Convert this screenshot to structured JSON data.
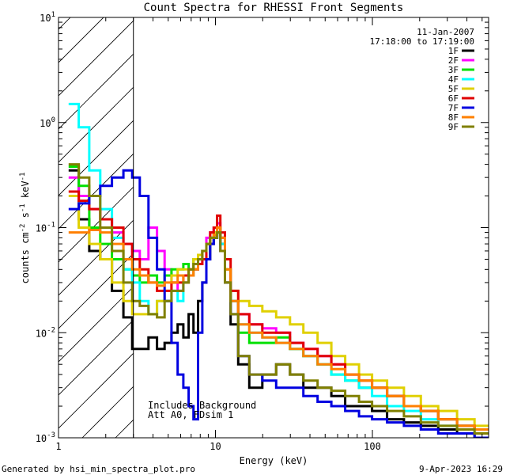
{
  "chart_data": {
    "type": "line",
    "title": "Count Spectra for RHESSI Front Segments",
    "xlabel": "Energy (keV)",
    "ylabel_parts": [
      "counts cm",
      "-2",
      " s",
      "-1",
      " keV",
      "-1"
    ],
    "x_scale": "log",
    "y_scale": "log",
    "xlim": [
      1,
      550
    ],
    "ylim": [
      0.001,
      10
    ],
    "x_ticks": [
      {
        "value": 1,
        "label": "1"
      },
      {
        "value": 10,
        "label": "10"
      },
      {
        "value": 100,
        "label": "100"
      }
    ],
    "y_ticks": [
      {
        "value": 10,
        "mantissa": "10",
        "exp": "1"
      },
      {
        "value": 1,
        "mantissa": "10",
        "exp": "0"
      },
      {
        "value": 0.1,
        "mantissa": "10",
        "exp": "-1"
      },
      {
        "value": 0.01,
        "mantissa": "10",
        "exp": "-2"
      },
      {
        "value": 0.001,
        "mantissa": "10",
        "exp": "-3"
      }
    ],
    "hatched_region": [
      1,
      3
    ],
    "date": "11-Jan-2007",
    "time_range": "17:18:00 to 17:19:00",
    "annotations": [
      "Includes Background",
      "Att A0, FDsim 1"
    ],
    "footer_left": "Generated by hsi_min_spectra_plot.pro",
    "footer_right": "9-Apr-2023 16:29",
    "series": [
      {
        "name": "1F",
        "color": "#000000",
        "x": [
          1.25,
          1.45,
          1.7,
          2.0,
          2.4,
          2.8,
          3.1,
          3.5,
          4.0,
          4.5,
          5.0,
          5.5,
          6.0,
          6.5,
          7.0,
          7.5,
          8.0,
          8.5,
          9.0,
          9.5,
          10.0,
          10.5,
          11.0,
          12.0,
          13.0,
          15.0,
          18.0,
          22.0,
          27.0,
          33.0,
          40.0,
          50.0,
          60.0,
          75.0,
          90.0,
          110.0,
          140.0,
          180.0,
          230.0,
          300.0,
          400.0,
          500.0
        ],
        "y": [
          0.35,
          0.12,
          0.06,
          0.05,
          0.025,
          0.014,
          0.007,
          0.007,
          0.009,
          0.007,
          0.008,
          0.01,
          0.012,
          0.009,
          0.015,
          0.01,
          0.02,
          0.03,
          0.05,
          0.07,
          0.08,
          0.1,
          0.07,
          0.03,
          0.012,
          0.005,
          0.003,
          0.004,
          0.005,
          0.004,
          0.003,
          0.003,
          0.0025,
          0.002,
          0.002,
          0.0018,
          0.0015,
          0.0014,
          0.0013,
          0.0012,
          0.0011,
          0.001
        ]
      },
      {
        "name": "2F",
        "color": "#ff00ff",
        "x": [
          1.25,
          1.45,
          1.7,
          2.0,
          2.4,
          2.8,
          3.1,
          3.5,
          4.0,
          4.5,
          5.0,
          5.5,
          6.0,
          6.5,
          7.0,
          7.5,
          8.0,
          8.5,
          9.0,
          9.5,
          10.0,
          10.5,
          11.0,
          12.0,
          13.0,
          15.0,
          18.0,
          22.0,
          27.0,
          33.0,
          40.0,
          50.0,
          60.0,
          75.0,
          90.0,
          110.0,
          140.0,
          180.0,
          230.0,
          300.0,
          400.0,
          500.0
        ],
        "y": [
          0.3,
          0.2,
          0.15,
          0.12,
          0.09,
          0.07,
          0.06,
          0.05,
          0.1,
          0.06,
          0.04,
          0.03,
          0.025,
          0.03,
          0.035,
          0.04,
          0.045,
          0.06,
          0.08,
          0.09,
          0.1,
          0.11,
          0.08,
          0.04,
          0.02,
          0.015,
          0.012,
          0.011,
          0.01,
          0.008,
          0.007,
          0.006,
          0.005,
          0.004,
          0.003,
          0.003,
          0.0025,
          0.002,
          0.0018,
          0.0015,
          0.0013,
          0.0012
        ]
      },
      {
        "name": "3F",
        "color": "#00e000",
        "x": [
          1.25,
          1.45,
          1.7,
          2.0,
          2.4,
          2.8,
          3.1,
          3.5,
          4.0,
          4.5,
          5.0,
          5.5,
          6.0,
          6.5,
          7.0,
          7.5,
          8.0,
          8.5,
          9.0,
          9.5,
          10.0,
          10.5,
          11.0,
          12.0,
          13.0,
          15.0,
          18.0,
          22.0,
          27.0,
          33.0,
          40.0,
          50.0,
          60.0,
          75.0,
          90.0,
          110.0,
          140.0,
          180.0,
          230.0,
          300.0,
          400.0,
          500.0
        ],
        "y": [
          0.38,
          0.25,
          0.1,
          0.07,
          0.05,
          0.04,
          0.035,
          0.03,
          0.035,
          0.03,
          0.035,
          0.04,
          0.04,
          0.045,
          0.04,
          0.05,
          0.055,
          0.06,
          0.07,
          0.08,
          0.09,
          0.1,
          0.08,
          0.04,
          0.02,
          0.01,
          0.008,
          0.008,
          0.009,
          0.007,
          0.006,
          0.005,
          0.004,
          0.0035,
          0.003,
          0.003,
          0.0025,
          0.002,
          0.0018,
          0.0015,
          0.0013,
          0.0012
        ]
      },
      {
        "name": "4F",
        "color": "#00ffff",
        "x": [
          1.25,
          1.45,
          1.7,
          2.0,
          2.4,
          2.8,
          3.1,
          3.5,
          4.0,
          4.5,
          5.0,
          5.5,
          6.0,
          6.5,
          7.0,
          7.5,
          8.0,
          8.5,
          9.0,
          9.5,
          10.0,
          10.5,
          11.0,
          12.0,
          13.0,
          15.0,
          18.0,
          22.0,
          27.0,
          33.0,
          40.0,
          50.0,
          60.0,
          75.0,
          90.0,
          110.0,
          140.0,
          180.0,
          230.0,
          300.0,
          400.0,
          500.0
        ],
        "y": [
          1.5,
          0.9,
          0.35,
          0.15,
          0.08,
          0.04,
          0.03,
          0.02,
          0.015,
          0.02,
          0.02,
          0.025,
          0.02,
          0.03,
          0.035,
          0.04,
          0.05,
          0.06,
          0.07,
          0.08,
          0.08,
          0.09,
          0.07,
          0.04,
          0.02,
          0.012,
          0.01,
          0.009,
          0.008,
          0.007,
          0.006,
          0.005,
          0.004,
          0.0035,
          0.003,
          0.0025,
          0.002,
          0.0018,
          0.0015,
          0.0013,
          0.0012,
          0.0011
        ]
      },
      {
        "name": "5F",
        "color": "#e0d000",
        "x": [
          1.25,
          1.45,
          1.7,
          2.0,
          2.4,
          2.8,
          3.1,
          3.5,
          4.0,
          4.5,
          5.0,
          5.5,
          6.0,
          6.5,
          7.0,
          7.5,
          8.0,
          8.5,
          9.0,
          9.5,
          10.0,
          10.5,
          11.0,
          12.0,
          13.0,
          15.0,
          18.0,
          22.0,
          27.0,
          33.0,
          40.0,
          50.0,
          60.0,
          75.0,
          90.0,
          110.0,
          140.0,
          180.0,
          230.0,
          300.0,
          400.0,
          500.0
        ],
        "y": [
          0.2,
          0.1,
          0.07,
          0.05,
          0.03,
          0.02,
          0.015,
          0.015,
          0.015,
          0.02,
          0.025,
          0.035,
          0.04,
          0.04,
          0.035,
          0.05,
          0.055,
          0.06,
          0.07,
          0.08,
          0.09,
          0.1,
          0.08,
          0.04,
          0.025,
          0.02,
          0.018,
          0.016,
          0.014,
          0.012,
          0.01,
          0.008,
          0.006,
          0.005,
          0.004,
          0.0035,
          0.003,
          0.0025,
          0.002,
          0.0018,
          0.0015,
          0.0013
        ]
      },
      {
        "name": "6F",
        "color": "#e00000",
        "x": [
          1.25,
          1.45,
          1.7,
          2.0,
          2.4,
          2.8,
          3.1,
          3.5,
          4.0,
          4.5,
          5.0,
          5.5,
          6.0,
          6.5,
          7.0,
          7.5,
          8.0,
          8.5,
          9.0,
          9.5,
          10.0,
          10.5,
          11.0,
          12.0,
          13.0,
          15.0,
          18.0,
          22.0,
          27.0,
          33.0,
          40.0,
          50.0,
          60.0,
          75.0,
          90.0,
          110.0,
          140.0,
          180.0,
          230.0,
          300.0,
          400.0,
          500.0
        ],
        "y": [
          0.22,
          0.18,
          0.15,
          0.12,
          0.1,
          0.07,
          0.05,
          0.04,
          0.03,
          0.025,
          0.025,
          0.03,
          0.03,
          0.035,
          0.04,
          0.04,
          0.045,
          0.05,
          0.07,
          0.09,
          0.1,
          0.13,
          0.09,
          0.05,
          0.025,
          0.015,
          0.012,
          0.01,
          0.01,
          0.008,
          0.007,
          0.006,
          0.005,
          0.004,
          0.0035,
          0.003,
          0.0025,
          0.002,
          0.0018,
          0.0015,
          0.0013,
          0.0012
        ]
      },
      {
        "name": "7F",
        "color": "#0000e0",
        "x": [
          1.25,
          1.45,
          1.7,
          2.0,
          2.4,
          2.8,
          3.1,
          3.5,
          4.0,
          4.5,
          5.0,
          5.5,
          6.0,
          6.5,
          7.0,
          7.5,
          8.0,
          8.5,
          9.0,
          9.5,
          10.0,
          10.5,
          11.0,
          12.0,
          13.0,
          15.0,
          18.0,
          22.0,
          27.0,
          33.0,
          40.0,
          50.0,
          60.0,
          75.0,
          90.0,
          110.0,
          140.0,
          180.0,
          230.0,
          300.0,
          400.0,
          500.0
        ],
        "y": [
          0.15,
          0.17,
          0.2,
          0.25,
          0.3,
          0.35,
          0.3,
          0.2,
          0.08,
          0.04,
          0.02,
          0.008,
          0.004,
          0.003,
          0.002,
          0.0015,
          0.01,
          0.03,
          0.05,
          0.07,
          0.08,
          0.09,
          0.06,
          0.03,
          0.015,
          0.006,
          0.004,
          0.0035,
          0.003,
          0.003,
          0.0025,
          0.0022,
          0.002,
          0.0018,
          0.0016,
          0.0015,
          0.0014,
          0.0013,
          0.0012,
          0.0011,
          0.0011,
          0.001
        ]
      },
      {
        "name": "8F",
        "color": "#ff8000",
        "x": [
          1.25,
          1.45,
          1.7,
          2.0,
          2.4,
          2.8,
          3.1,
          3.5,
          4.0,
          4.5,
          5.0,
          5.5,
          6.0,
          6.5,
          7.0,
          7.5,
          8.0,
          8.5,
          9.0,
          9.5,
          10.0,
          10.5,
          11.0,
          12.0,
          13.0,
          15.0,
          18.0,
          22.0,
          27.0,
          33.0,
          40.0,
          50.0,
          60.0,
          75.0,
          90.0,
          110.0,
          140.0,
          180.0,
          230.0,
          300.0,
          400.0,
          500.0
        ],
        "y": [
          0.09,
          0.09,
          0.095,
          0.09,
          0.07,
          0.05,
          0.04,
          0.035,
          0.03,
          0.028,
          0.03,
          0.03,
          0.035,
          0.03,
          0.035,
          0.04,
          0.05,
          0.06,
          0.07,
          0.08,
          0.085,
          0.1,
          0.08,
          0.04,
          0.02,
          0.012,
          0.01,
          0.009,
          0.008,
          0.007,
          0.006,
          0.005,
          0.0045,
          0.004,
          0.0035,
          0.003,
          0.0025,
          0.002,
          0.0018,
          0.0015,
          0.0013,
          0.0012
        ]
      },
      {
        "name": "9F",
        "color": "#808000",
        "x": [
          1.25,
          1.45,
          1.7,
          2.0,
          2.4,
          2.8,
          3.1,
          3.5,
          4.0,
          4.5,
          5.0,
          5.5,
          6.0,
          6.5,
          7.0,
          7.5,
          8.0,
          8.5,
          9.0,
          9.5,
          10.0,
          10.5,
          11.0,
          12.0,
          13.0,
          15.0,
          18.0,
          22.0,
          27.0,
          33.0,
          40.0,
          50.0,
          60.0,
          75.0,
          90.0,
          110.0,
          140.0,
          180.0,
          230.0,
          300.0,
          400.0,
          500.0
        ],
        "y": [
          0.4,
          0.3,
          0.2,
          0.1,
          0.06,
          0.03,
          0.02,
          0.018,
          0.015,
          0.014,
          0.02,
          0.025,
          0.025,
          0.03,
          0.04,
          0.045,
          0.05,
          0.06,
          0.07,
          0.08,
          0.08,
          0.09,
          0.06,
          0.03,
          0.015,
          0.006,
          0.004,
          0.004,
          0.005,
          0.004,
          0.0035,
          0.003,
          0.0028,
          0.0025,
          0.0022,
          0.002,
          0.0018,
          0.0016,
          0.0014,
          0.0013,
          0.0012,
          0.0011
        ]
      }
    ]
  }
}
